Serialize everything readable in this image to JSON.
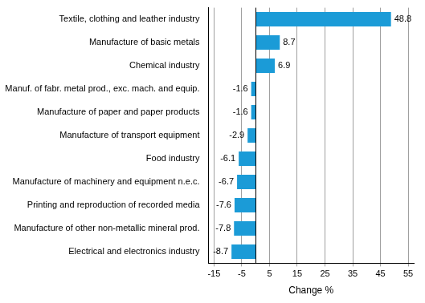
{
  "chart_data": {
    "type": "bar",
    "orientation": "horizontal",
    "categories": [
      "Textile, clothing and leather industry",
      "Manufacture of basic metals",
      "Chemical industry",
      "Manuf. of fabr. metal prod., exc. mach. and equip.",
      "Manufacture of paper and paper products",
      "Manufacture of transport equipment",
      "Food industry",
      "Manufacture of machinery and equipment n.e.c.",
      "Printing and reproduction of recorded media",
      "Manufacture of other non-metallic mineral prod.",
      "Electrical and electronics industry"
    ],
    "values": [
      48.8,
      8.7,
      6.9,
      -1.6,
      -1.6,
      -2.9,
      -6.1,
      -6.7,
      -7.6,
      -7.8,
      -8.7
    ],
    "color": "#1b9bd7",
    "x_label": "Change %",
    "xlim": [
      -17,
      57
    ],
    "xticks": [
      -15,
      -5,
      5,
      15,
      25,
      35,
      45,
      55
    ],
    "grid": true,
    "data_labels": true
  }
}
